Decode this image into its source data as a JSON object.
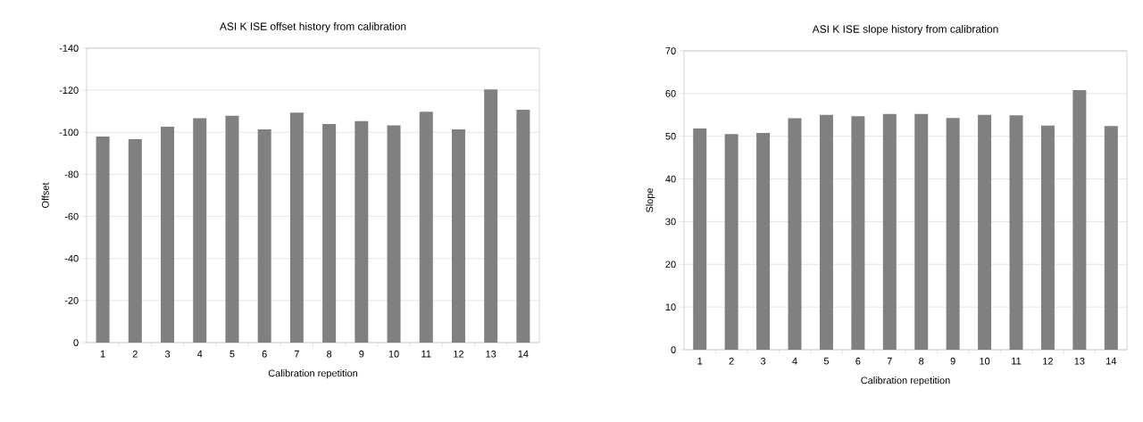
{
  "chart_data": [
    {
      "type": "bar",
      "title": "ASI K ISE offset history from calibration",
      "xlabel": "Calibration repetition",
      "ylabel": "Offset",
      "categories": [
        "1",
        "2",
        "3",
        "4",
        "5",
        "6",
        "7",
        "8",
        "9",
        "10",
        "11",
        "12",
        "13",
        "14"
      ],
      "values": [
        -98.0,
        -96.7,
        -102.7,
        -106.7,
        -107.9,
        -101.4,
        -109.4,
        -103.9,
        -105.3,
        -103.3,
        -109.8,
        -101.4,
        -120.4,
        -110.7
      ],
      "color": "#808080",
      "ylim": [
        0,
        -140
      ],
      "yticks": [
        0,
        -20,
        -40,
        -60,
        -80,
        -100,
        -120,
        -140
      ],
      "grid": "y"
    },
    {
      "type": "bar",
      "title": "ASI K ISE slope history from calibration",
      "xlabel": "Calibration repetition",
      "ylabel": "Slope",
      "categories": [
        "1",
        "2",
        "3",
        "4",
        "5",
        "6",
        "7",
        "8",
        "9",
        "10",
        "11",
        "12",
        "13",
        "14"
      ],
      "values": [
        51.8,
        50.5,
        50.8,
        54.2,
        55.0,
        54.7,
        55.2,
        55.2,
        54.3,
        55.0,
        54.9,
        52.5,
        60.8,
        52.4
      ],
      "color": "#808080",
      "ylim": [
        0,
        70
      ],
      "yticks": [
        0,
        10,
        20,
        30,
        40,
        50,
        60,
        70
      ],
      "grid": "y"
    }
  ]
}
